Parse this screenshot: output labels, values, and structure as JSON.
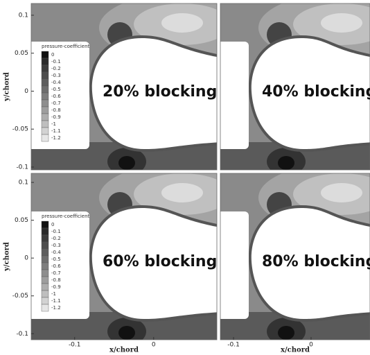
{
  "chart_data": [
    {
      "type": "contour",
      "annotation": "20% blocking",
      "ylabel": "y/chord",
      "xlim": [
        -0.155,
        0.08
      ],
      "ylim": [
        -0.1037,
        0.1155
      ],
      "yticks": [
        -0.1,
        -0.05,
        0,
        0.05,
        0.1
      ],
      "legend": {
        "title": "pressure-coefficient",
        "levels": [
          0,
          -0.1,
          -0.2,
          -0.3,
          -0.4,
          -0.5,
          -0.6,
          -0.7,
          -0.8,
          -0.9,
          -1,
          -1.1,
          -1.2
        ],
        "colors": [
          "#111111",
          "#2a2a2a",
          "#3c3c3c",
          "#4d4d4d",
          "#5e5e5e",
          "#6e6e6e",
          "#7e7e7e",
          "#8e8e8e",
          "#9e9e9e",
          "#aeaeae",
          "#bebebe",
          "#d2d2d2",
          "#e6e6e6"
        ]
      }
    },
    {
      "type": "contour",
      "annotation": "40% blocking",
      "xlim": [
        -0.117,
        0.076
      ],
      "ylim": [
        -0.1037,
        0.1155
      ]
    },
    {
      "type": "contour",
      "annotation": "60% blocking",
      "ylabel": "y/chord",
      "xlabel": "x/chord",
      "xlim": [
        -0.155,
        0.08
      ],
      "ylim": [
        -0.108,
        0.112
      ],
      "yticks": [
        -0.1,
        -0.05,
        0,
        0.05,
        0.1
      ],
      "xticks": [
        -0.1,
        0
      ],
      "legend": {
        "title": "pressure-coefficient",
        "levels": [
          0,
          -0.1,
          -0.2,
          -0.3,
          -0.4,
          -0.5,
          -0.6,
          -0.7,
          -0.8,
          -0.9,
          -1,
          -1.1,
          -1.2
        ],
        "colors": [
          "#111111",
          "#2a2a2a",
          "#3c3c3c",
          "#4d4d4d",
          "#5e5e5e",
          "#6e6e6e",
          "#7e7e7e",
          "#8e8e8e",
          "#9e9e9e",
          "#aeaeae",
          "#bebebe",
          "#d2d2d2",
          "#e6e6e6"
        ]
      }
    },
    {
      "type": "contour",
      "annotation": "80% blocking",
      "xlabel": "x/chord",
      "xlim": [
        -0.117,
        0.076
      ],
      "ylim": [
        -0.108,
        0.112
      ],
      "xticks": [
        -0.1,
        0
      ]
    }
  ]
}
